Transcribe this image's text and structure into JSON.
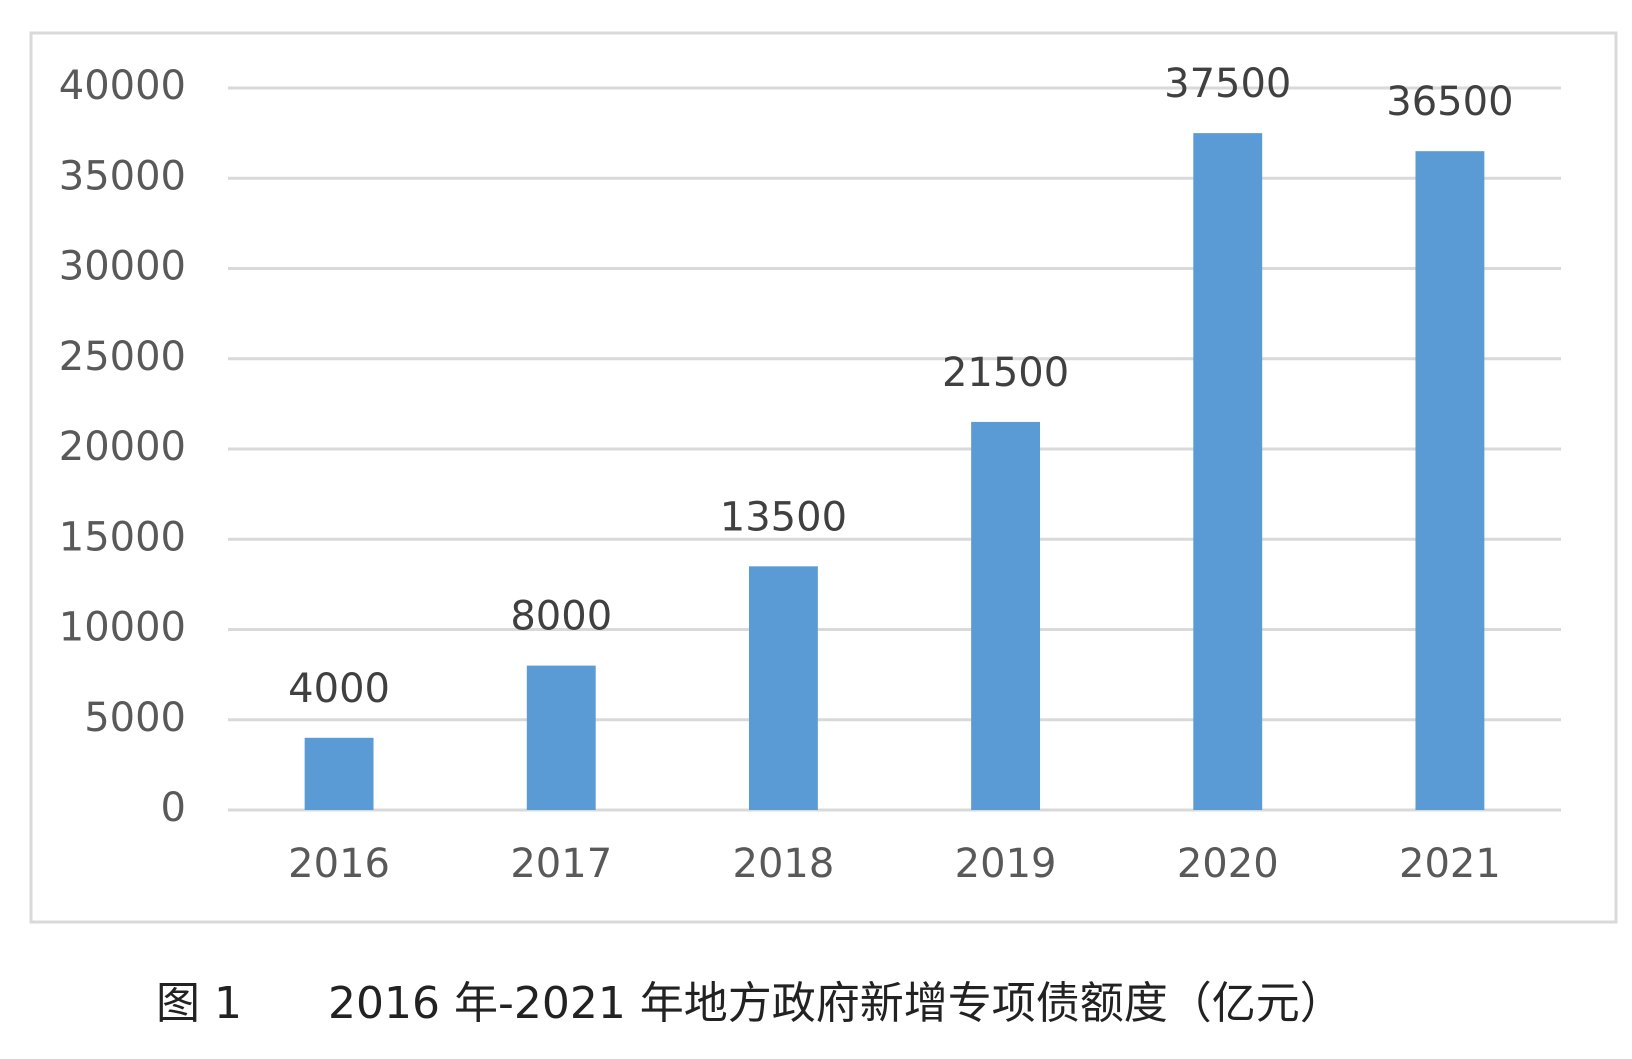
{
  "chart_data": {
    "type": "bar",
    "figure_label": "图 1",
    "title": "2016 年-2021 年地方政府新增专项债额度（亿元）",
    "categories": [
      "2016",
      "2017",
      "2018",
      "2019",
      "2020",
      "2021"
    ],
    "values": [
      4000,
      8000,
      13500,
      21500,
      37500,
      36500
    ],
    "color": "#5b9bd5",
    "ylim": [
      0,
      40000
    ],
    "yticks": [
      0,
      5000,
      10000,
      15000,
      20000,
      25000,
      30000,
      35000,
      40000
    ],
    "grid": true,
    "data_labels": true
  }
}
